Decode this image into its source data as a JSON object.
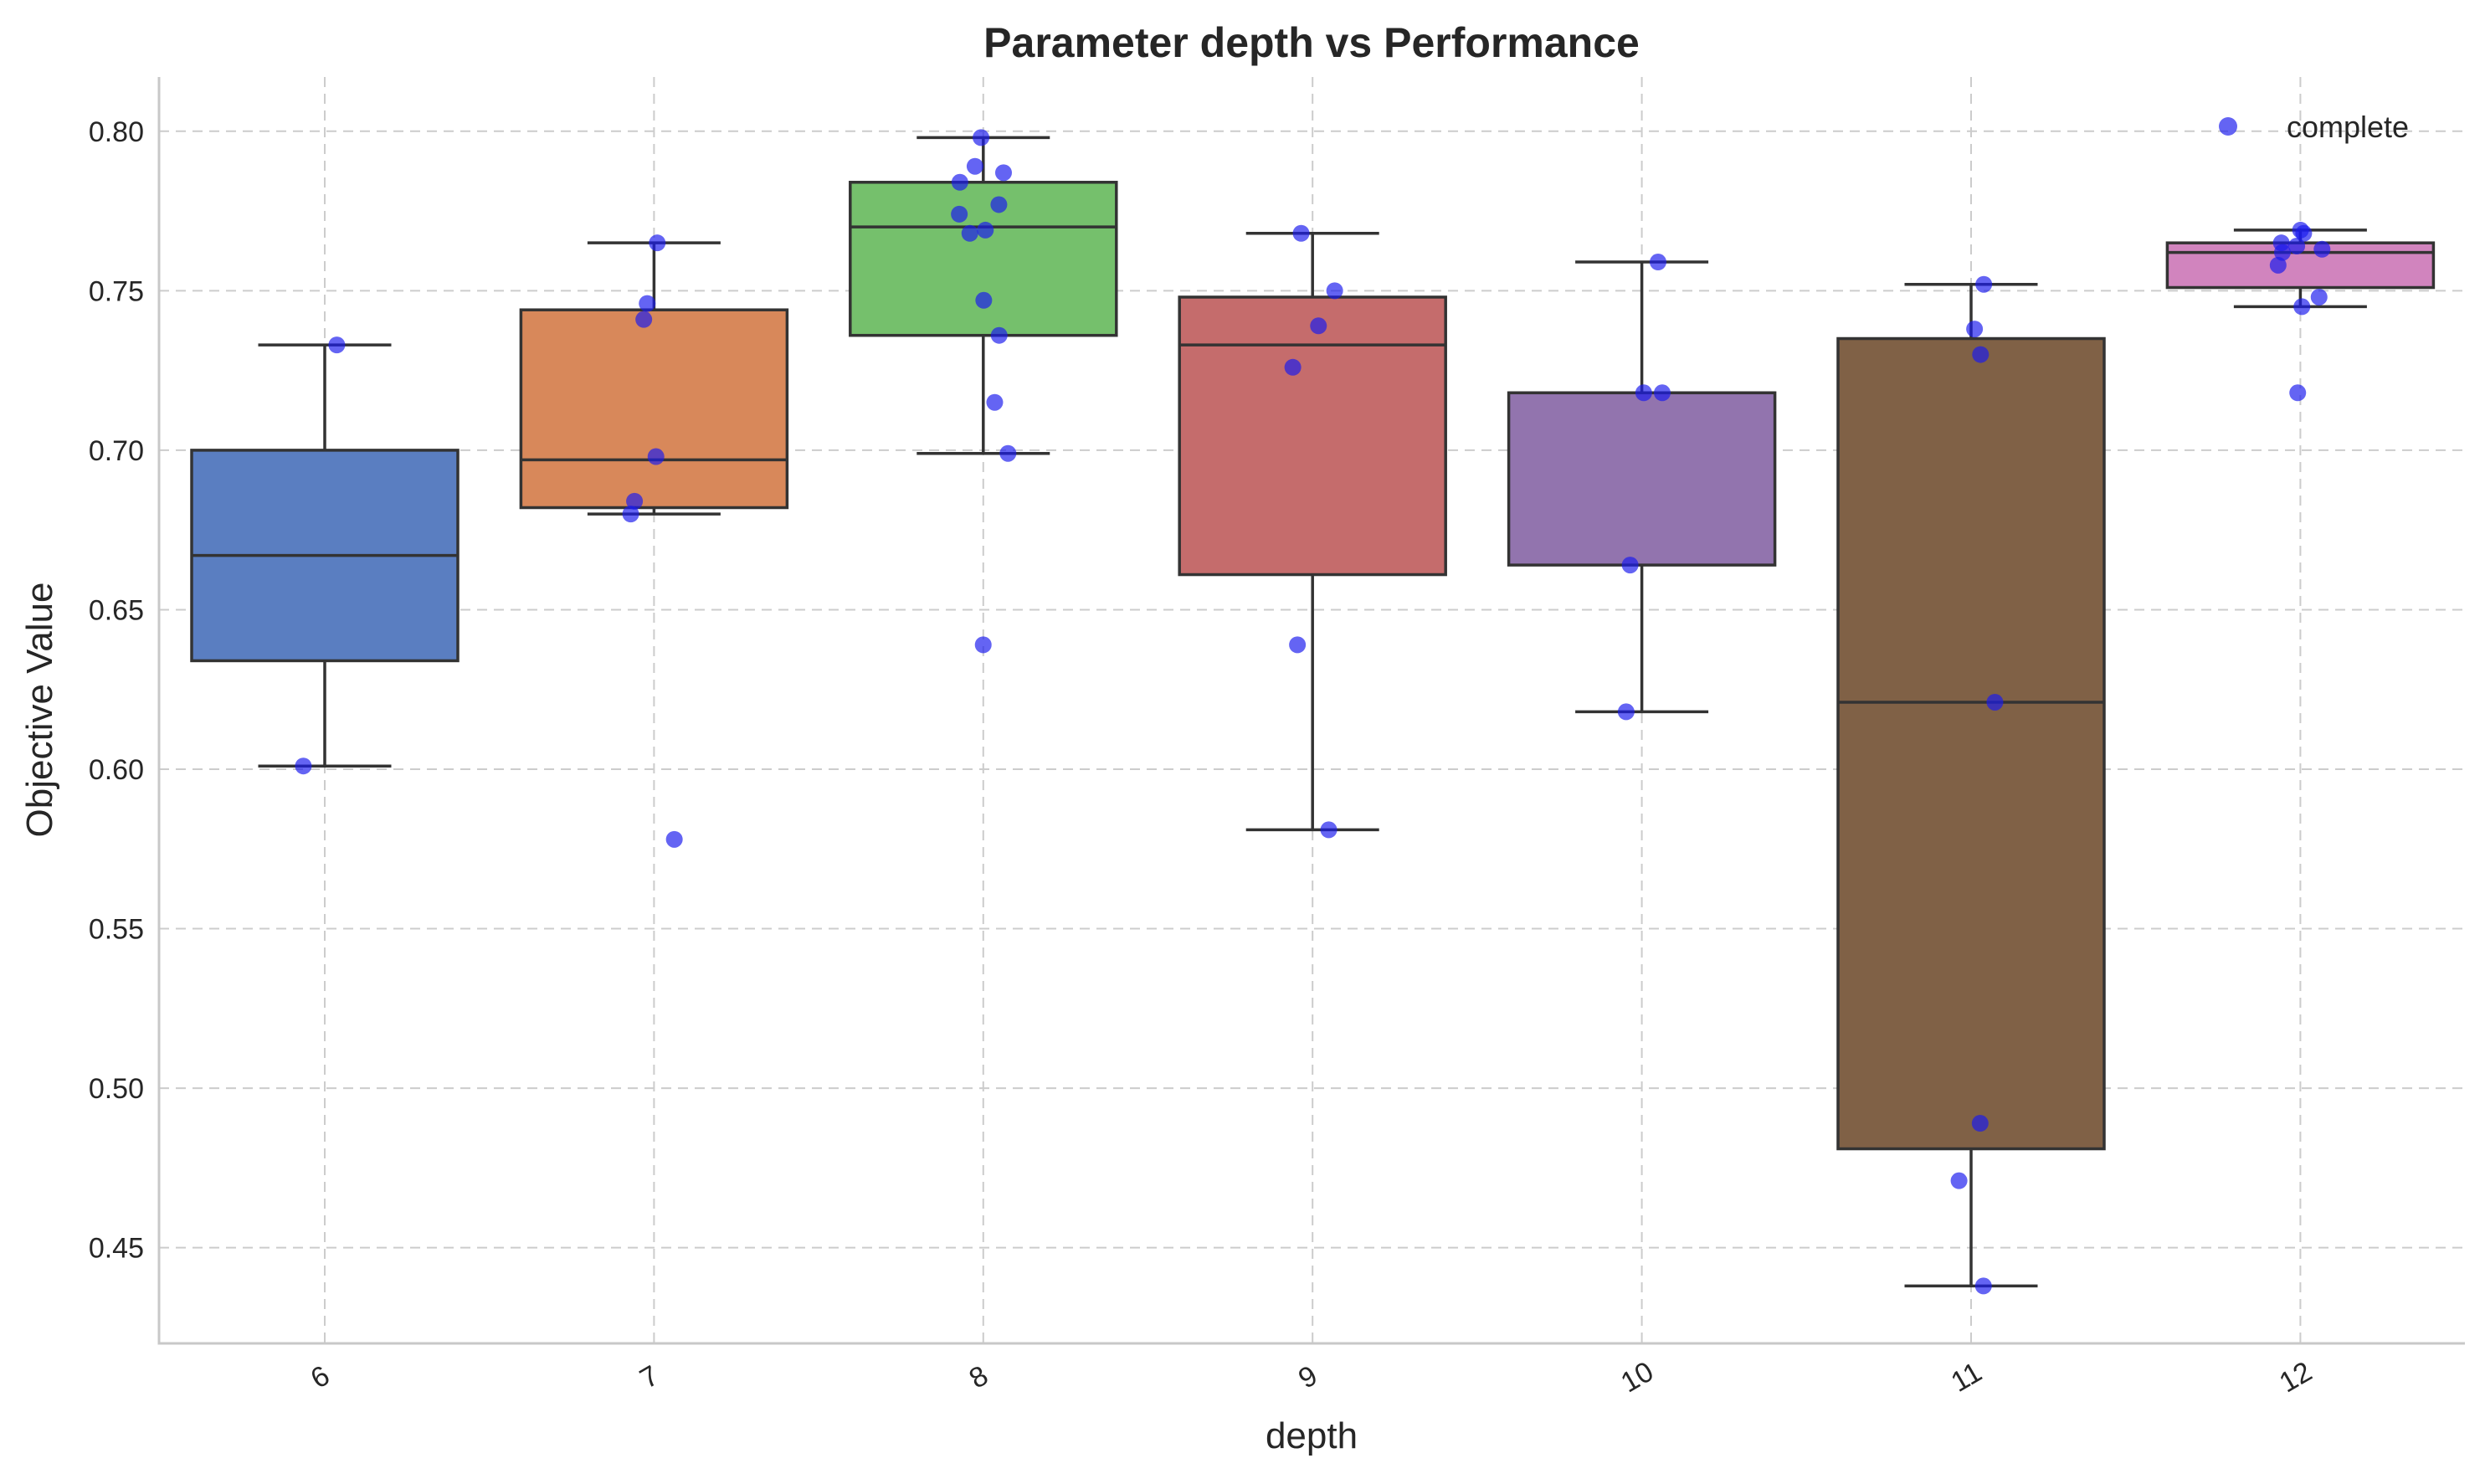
{
  "chart_data": {
    "type": "box",
    "title": "Parameter depth vs Performance",
    "xlabel": "depth",
    "ylabel": "Objective Value",
    "ylim": [
      0.42,
      0.817
    ],
    "yticks": [
      "0.45",
      "0.50",
      "0.55",
      "0.60",
      "0.65",
      "0.70",
      "0.75",
      "0.80"
    ],
    "grid": true,
    "legend": {
      "label": "complete",
      "placement": "top-right",
      "color": "#1a1aee"
    },
    "categories": [
      "6",
      "7",
      "8",
      "9",
      "10",
      "11",
      "12"
    ],
    "boxes": [
      {
        "category": "6",
        "color": "#5a7ec1",
        "whisker_low": 0.601,
        "q1": 0.634,
        "median": 0.667,
        "q3": 0.7,
        "whisker_high": 0.733
      },
      {
        "category": "7",
        "color": "#d8885a",
        "whisker_low": 0.68,
        "q1": 0.682,
        "median": 0.697,
        "q3": 0.744,
        "whisker_high": 0.765
      },
      {
        "category": "8",
        "color": "#75c06c",
        "whisker_low": 0.699,
        "q1": 0.736,
        "median": 0.77,
        "q3": 0.784,
        "whisker_high": 0.798
      },
      {
        "category": "9",
        "color": "#c56c6c",
        "whisker_low": 0.581,
        "q1": 0.661,
        "median": 0.733,
        "q3": 0.748,
        "whisker_high": 0.768
      },
      {
        "category": "10",
        "color": "#9274ae",
        "whisker_low": 0.618,
        "q1": 0.664,
        "median": 0.718,
        "q3": 0.718,
        "whisker_high": 0.759
      },
      {
        "category": "11",
        "color": "#806146",
        "whisker_low": 0.438,
        "q1": 0.481,
        "median": 0.621,
        "q3": 0.735,
        "whisker_high": 0.752
      },
      {
        "category": "12",
        "color": "#d184be",
        "whisker_low": 0.745,
        "q1": 0.751,
        "median": 0.762,
        "q3": 0.765,
        "whisker_high": 0.769
      }
    ],
    "points": [
      {
        "category": "6",
        "values": [
          0.733,
          0.601
        ]
      },
      {
        "category": "7",
        "values": [
          0.765,
          0.746,
          0.741,
          0.698,
          0.684,
          0.68,
          0.578
        ]
      },
      {
        "category": "8",
        "values": [
          0.798,
          0.789,
          0.787,
          0.784,
          0.777,
          0.774,
          0.769,
          0.768,
          0.747,
          0.736,
          0.715,
          0.699,
          0.639
        ]
      },
      {
        "category": "9",
        "values": [
          0.768,
          0.75,
          0.739,
          0.726,
          0.639,
          0.581
        ]
      },
      {
        "category": "10",
        "values": [
          0.759,
          0.718,
          0.718,
          0.664,
          0.618
        ]
      },
      {
        "category": "11",
        "values": [
          0.752,
          0.738,
          0.73,
          0.621,
          0.489,
          0.471,
          0.438
        ]
      },
      {
        "category": "12",
        "values": [
          0.769,
          0.768,
          0.765,
          0.764,
          0.763,
          0.762,
          0.758,
          0.748,
          0.745,
          0.718
        ]
      }
    ]
  }
}
